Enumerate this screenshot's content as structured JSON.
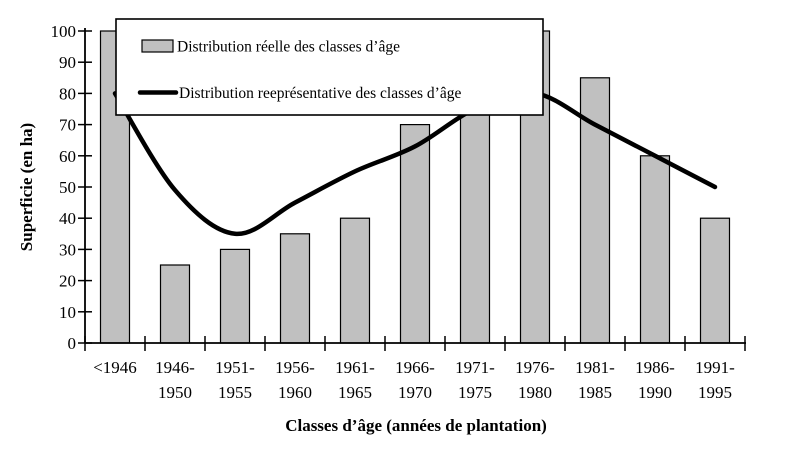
{
  "chart_data": {
    "type": "bar",
    "title": "",
    "categories": [
      "<1946",
      "1946-1950",
      "1951-1955",
      "1956-1960",
      "1961-1965",
      "1966-1970",
      "1971-1975",
      "1976-1980",
      "1981-1985",
      "1986-1990",
      "1991-1995"
    ],
    "category_tick_lines": [
      [
        "<1946"
      ],
      [
        "1946-",
        "1950"
      ],
      [
        "1951-",
        "1955"
      ],
      [
        "1956-",
        "1960"
      ],
      [
        "1961-",
        "1965"
      ],
      [
        "1966-",
        "1970"
      ],
      [
        "1971-",
        "1975"
      ],
      [
        "1976-",
        "1980"
      ],
      [
        "1981-",
        "1985"
      ],
      [
        "1986-",
        "1990"
      ],
      [
        "1991-",
        "1995"
      ]
    ],
    "series": [
      {
        "name": "Distribution réelle des classes d’âge",
        "type": "bar",
        "values": [
          100,
          25,
          30,
          35,
          40,
          70,
          75,
          100,
          85,
          60,
          40
        ],
        "color": "#c0c0c0",
        "border_color": "#000000"
      },
      {
        "name": "Distribution reeprésentative des classes d’âge",
        "type": "line",
        "values": [
          80,
          49,
          35,
          45,
          55,
          63,
          75,
          80,
          70,
          60,
          50
        ],
        "color": "#000000",
        "smooth": true
      }
    ],
    "xlabel": "Classes d’âge (années de plantation)",
    "ylabel": "Superficie (en ha)",
    "ylim": [
      0,
      100
    ],
    "ytick_step": 10,
    "yticks": [
      0,
      10,
      20,
      30,
      40,
      50,
      60,
      70,
      80,
      90,
      100
    ],
    "grid": false,
    "legend_position": "top-left-overlay",
    "background_color": "#ffffff",
    "axis_color": "#000000",
    "text_color": "#000000"
  }
}
